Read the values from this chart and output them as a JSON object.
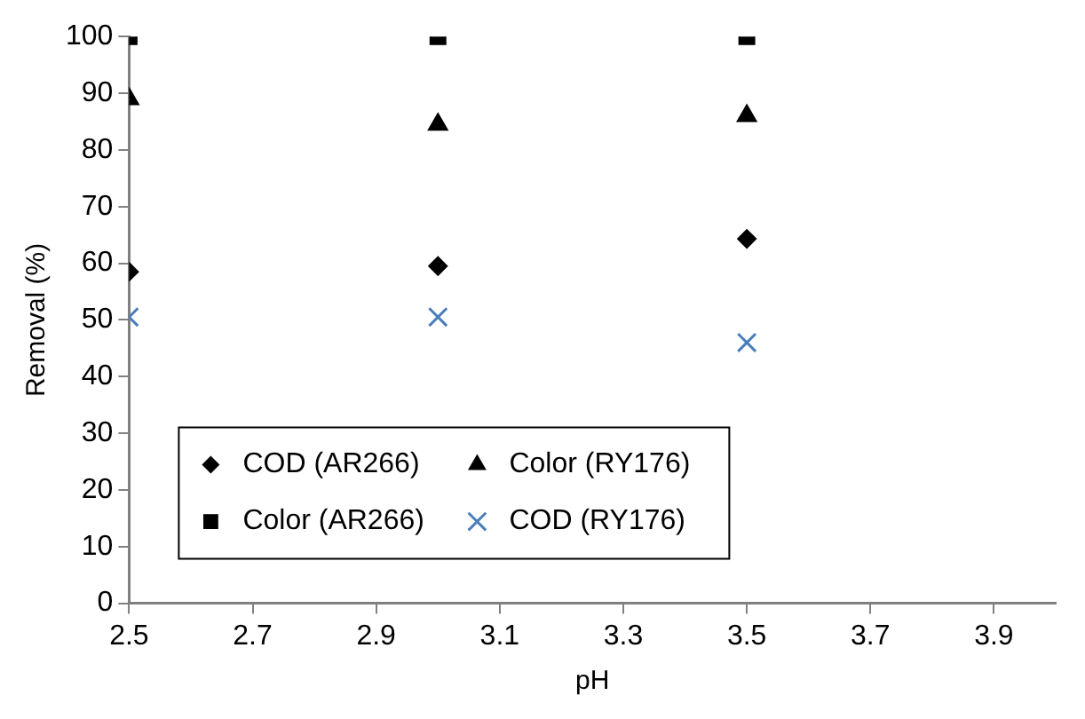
{
  "chart_data": {
    "type": "scatter",
    "xlabel": "pH",
    "ylabel": "Removal (%)",
    "x": [
      2.5,
      3.0,
      3.5
    ],
    "series": [
      {
        "name": "COD (AR266)",
        "color": "#000000",
        "marker": "diamond",
        "values": [
          58.5,
          59.5,
          64.3
        ]
      },
      {
        "name": "Color (AR266)",
        "color": "#000000",
        "marker": "square",
        "values": [
          100,
          100,
          100
        ]
      },
      {
        "name": "Color (RY176)",
        "color": "#000000",
        "marker": "triangle",
        "values": [
          89,
          84.5,
          86
        ]
      },
      {
        "name": "COD (RY176)",
        "color": "#4a7ebb",
        "marker": "cross",
        "values": [
          50.5,
          50.5,
          46
        ]
      }
    ],
    "xlim": [
      2.5,
      4.0
    ],
    "xticks": [
      2.5,
      2.7,
      2.9,
      3.1,
      3.3,
      3.5,
      3.7,
      3.9
    ],
    "ylim": [
      0,
      100
    ],
    "yticks": [
      0,
      10,
      20,
      30,
      40,
      50,
      60,
      70,
      80,
      90,
      100
    ],
    "legend": "bottom left"
  }
}
